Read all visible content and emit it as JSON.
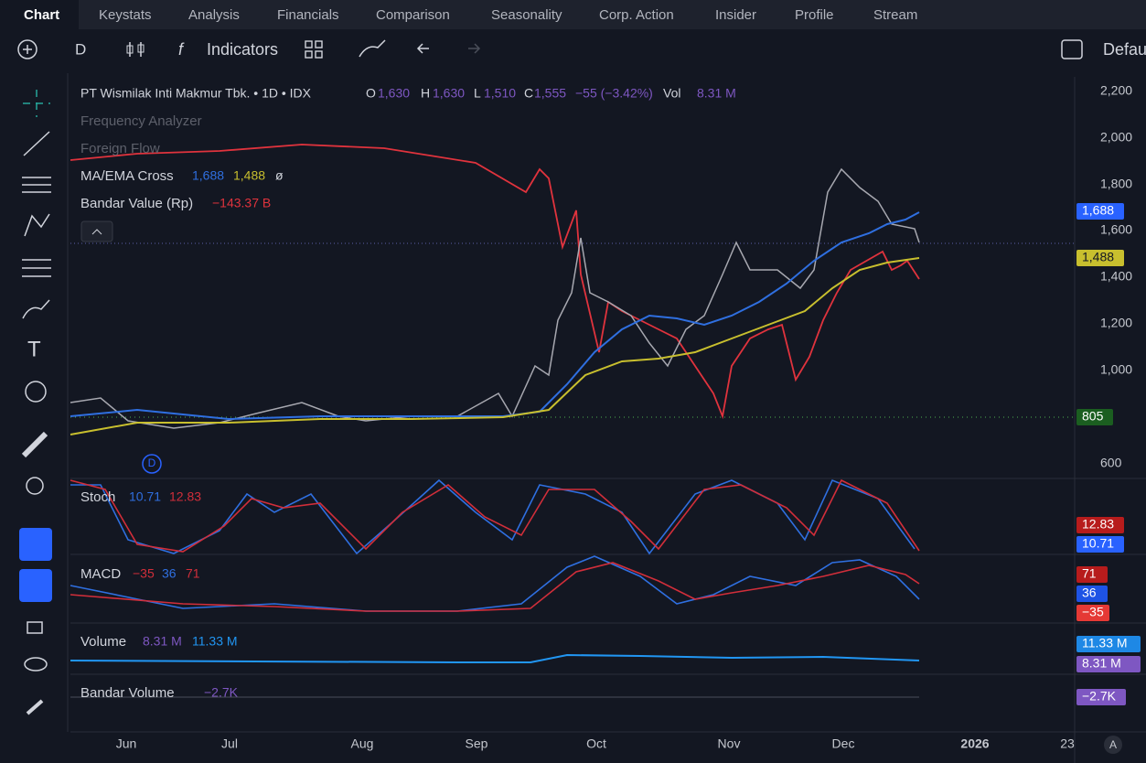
{
  "tabs": [
    "Chart",
    "Keystats",
    "Analysis",
    "Financials",
    "Comparison",
    "Seasonality",
    "Corp. Action",
    "Insider",
    "Profile",
    "Stream"
  ],
  "toolbar": {
    "interval": "D",
    "indicators": "Indicators",
    "layout": "Defau"
  },
  "legend": {
    "symbol": "PT Wismilak Inti Makmur Tbk. • 1D • IDX",
    "o_label": "O",
    "open": "1,630",
    "h_label": "H",
    "high": "1,630",
    "l_label": "L",
    "low": "1,510",
    "c_label": "C",
    "close": "1,555",
    "change": "−55 (−3.42%)",
    "vol_label": "Vol",
    "volume": "8.31 M"
  },
  "indicators": [
    {
      "name": "Frequency Analyzer"
    },
    {
      "name": "Foreign Flow"
    },
    {
      "name": "MA/EMA Cross",
      "values": [
        "1,688",
        "1,488",
        "ø"
      ]
    },
    {
      "name": "Bandar Value (Rp)",
      "values": [
        "−143.37 B"
      ]
    }
  ],
  "price_axis": [
    "2,200",
    "2,000",
    "1,800",
    "1,600",
    "1,400",
    "1,200",
    "1,000",
    "600"
  ],
  "price_badges": [
    "1,688",
    "1,488",
    "805"
  ],
  "marker": "D",
  "panes": [
    {
      "name": "Stoch",
      "values": [
        "10.71",
        "12.83"
      ],
      "badges": [
        "12.83",
        "10.71"
      ]
    },
    {
      "name": "MACD",
      "values": [
        "−35",
        "36",
        "71"
      ],
      "badges": [
        "71",
        "36",
        "−35"
      ]
    },
    {
      "name": "Volume",
      "values": [
        "8.31 M",
        "11.33 M"
      ],
      "badges": [
        "11.33 M",
        "8.31 M"
      ]
    },
    {
      "name": "Bandar Volume",
      "values": [
        "−2.7K"
      ],
      "badges": [
        "−2.7K"
      ]
    }
  ],
  "time_axis": [
    "Jun",
    "Jul",
    "Aug",
    "Sep",
    "Oct",
    "Nov",
    "Dec",
    "2026",
    "23"
  ],
  "auto": "A"
}
